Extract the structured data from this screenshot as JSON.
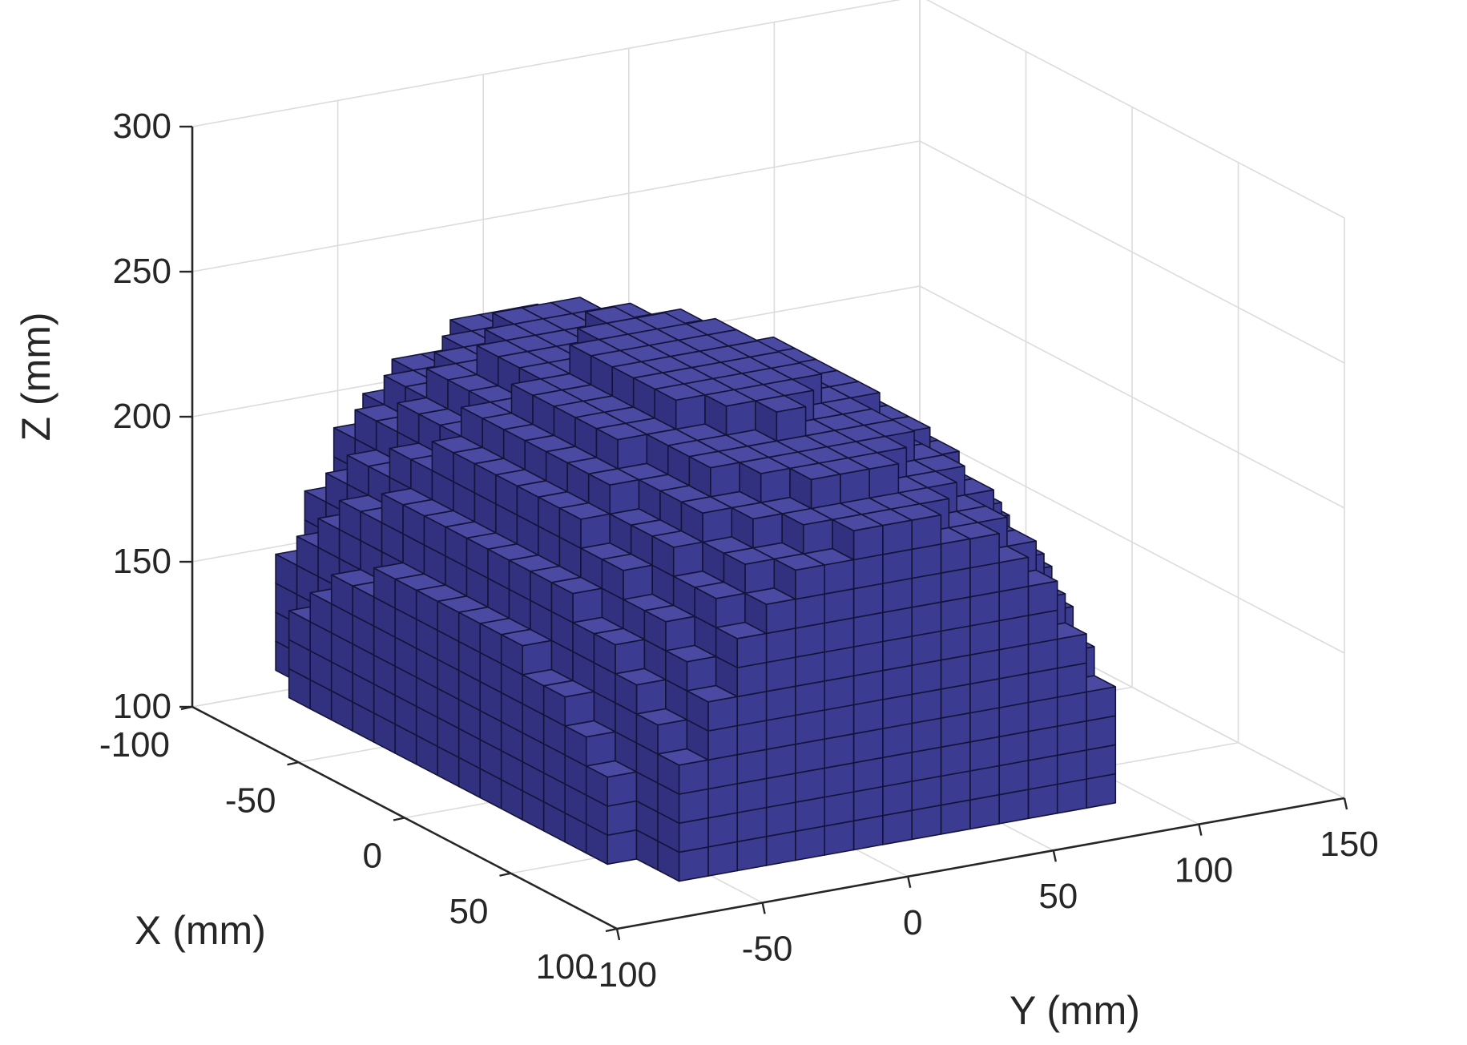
{
  "chart_data": {
    "type": "voxel-3d",
    "xlabel": "X (mm)",
    "ylabel": "Y (mm)",
    "zlabel": "Z (mm)",
    "xlim": [
      -100,
      100
    ],
    "ylim": [
      -100,
      150
    ],
    "zlim": [
      100,
      300
    ],
    "xticks": [
      -100,
      -50,
      0,
      50,
      100
    ],
    "yticks": [
      -100,
      -50,
      0,
      50,
      100,
      150
    ],
    "zticks": [
      100,
      150,
      200,
      250,
      300
    ],
    "grid": true,
    "voxel_size_mm": 10,
    "colors": {
      "top": "#4a4aa2",
      "front": "#3b3b91",
      "side": "#31317f",
      "edge": "#14143a"
    },
    "voxel_columns": {
      "description_units": "mm",
      "x_range": [
        -90,
        90
      ],
      "y_range": [
        -80,
        80
      ],
      "z_base": 110,
      "z_top_center": 240,
      "z_top_edge": 130
    }
  }
}
